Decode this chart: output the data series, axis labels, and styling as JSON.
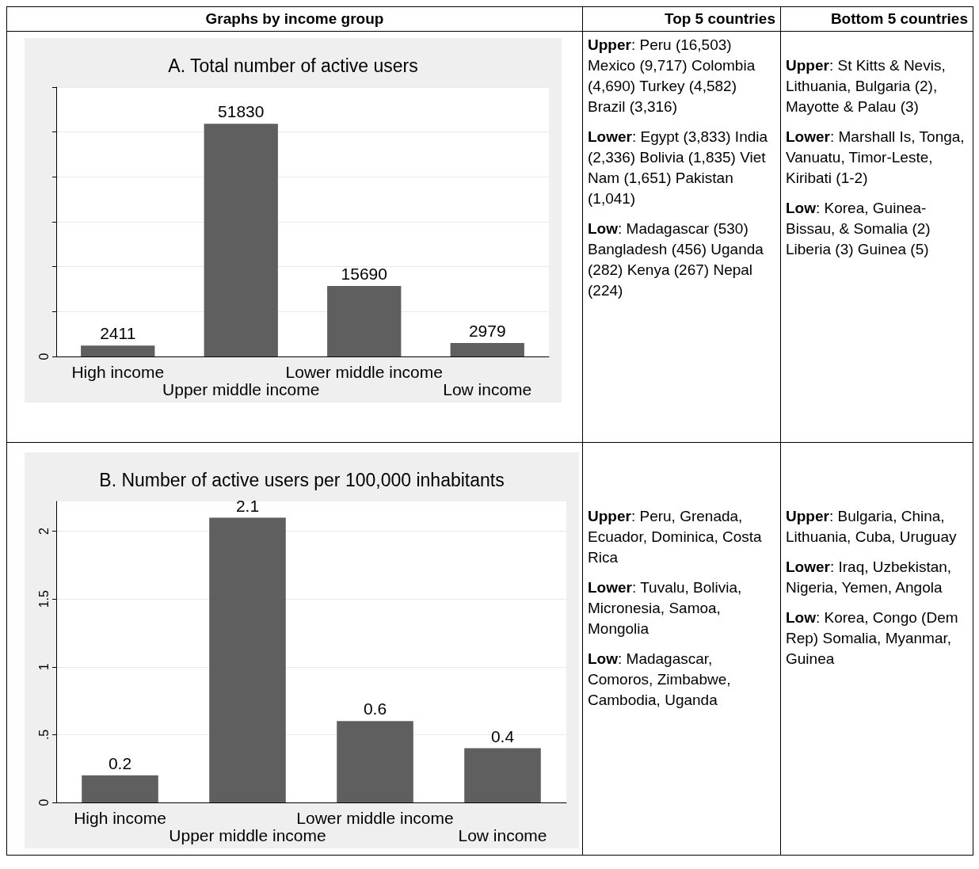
{
  "chart_data": [
    {
      "type": "other",
      "annotations": [
        "Graphs by income group",
        "Top 5 countries",
        "Bottom 5 countries"
      ]
    },
    {
      "type": "bar",
      "title": "A. Total number of active users",
      "categories": [
        "High income",
        "Upper middle income",
        "Lower middle income",
        "Low income"
      ],
      "values": [
        2411,
        51830,
        15690,
        2979
      ],
      "color": "#5f5f5f",
      "annotations": [
        "0"
      ],
      "grid": "y",
      "data_labels": true
    },
    {
      "type": "other",
      "annotations": [
        "Upper: Peru (16,503) Mexico (9,717) Colombia (4,690) Turkey (4,582) Brazil (3,316)",
        "Lower: Egypt (3,833) India (2,336) Bolivia (1,835) Viet Nam (1,651) Pakistan (1,041)",
        "Low: Madagascar (530) Bangladesh (456) Uganda (282) Kenya (267) Nepal (224)"
      ]
    },
    {
      "type": "other",
      "annotations": [
        "Upper: St Kitts & Nevis, Lithuania, Bulgaria (2), Mayotte & Palau (3)",
        "Lower: Marshall Is, Tonga, Vanuatu, Timor-Leste, Kiribati (1-2)",
        "Low: Korea, Guinea-Bissau, & Somalia (2) Liberia (3) Guinea (5)"
      ]
    },
    {
      "type": "bar",
      "title": "B. Number of active users per 100,000 inhabitants",
      "categories": [
        "High income",
        "Upper middle income",
        "Lower middle income",
        "Low income"
      ],
      "values": [
        0.2,
        2.1,
        0.6,
        0.4
      ],
      "color": "#5f5f5f",
      "ylim": [
        0,
        2.22
      ],
      "yticks": [
        0,
        {
          "value": 0.5,
          "label": ".5"
        },
        1,
        1.5,
        2
      ],
      "grid": "y",
      "data_labels": true
    },
    {
      "type": "other",
      "annotations": [
        "Upper: Peru, Grenada, Ecuador, Dominica, Costa Rica",
        "Lower: Tuvalu, Bolivia, Micronesia, Samoa, Mongolia",
        "Low: Madagascar, Comoros, Zimbabwe, Cambodia, Uganda"
      ]
    },
    {
      "type": "other",
      "annotations": [
        "Upper: Bulgaria, China, Lithuania, Cuba, Uruguay",
        "Lower: Iraq, Uzbekistan, Nigeria, Yemen, Angola",
        "Low: Korea, Congo (Dem Rep) Somalia, Myanmar, Guinea"
      ]
    }
  ]
}
